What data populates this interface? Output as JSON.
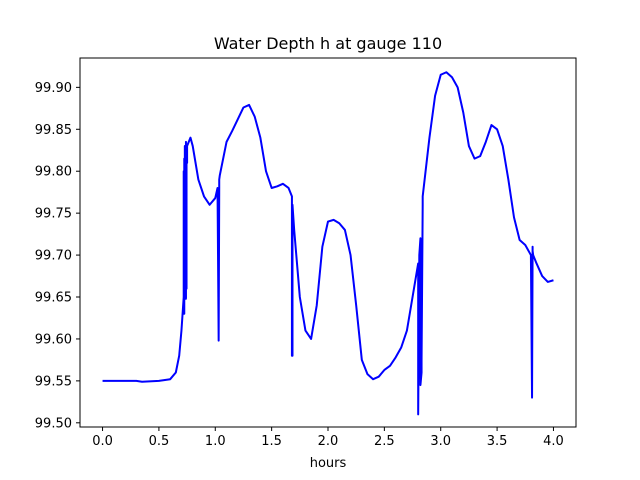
{
  "chart_data": {
    "type": "line",
    "title": "Water Depth h at gauge 110",
    "xlabel": "hours",
    "ylabel": "",
    "xlim": [
      -0.2,
      4.2
    ],
    "ylim": [
      99.495,
      99.935
    ],
    "x_ticks": [
      0.0,
      0.5,
      1.0,
      1.5,
      2.0,
      2.5,
      3.0,
      3.5,
      4.0
    ],
    "x_tick_labels": [
      "0.0",
      "0.5",
      "1.0",
      "1.5",
      "2.0",
      "2.5",
      "3.0",
      "3.5",
      "4.0"
    ],
    "y_ticks": [
      99.5,
      99.55,
      99.6,
      99.65,
      99.7,
      99.75,
      99.8,
      99.85,
      99.9
    ],
    "y_tick_labels": [
      "99.50",
      "99.55",
      "99.60",
      "99.65",
      "99.70",
      "99.75",
      "99.80",
      "99.85",
      "99.90"
    ],
    "grid": false,
    "series": [
      {
        "color": "#0000ff",
        "x": [
          0.0,
          0.3,
          0.35,
          0.5,
          0.6,
          0.65,
          0.68,
          0.7,
          0.72,
          0.72,
          0.725,
          0.725,
          0.73,
          0.73,
          0.74,
          0.74,
          0.745,
          0.745,
          0.75,
          0.75,
          0.78,
          0.8,
          0.85,
          0.9,
          0.95,
          1.0,
          1.02,
          1.03,
          1.03,
          1.035,
          1.035,
          1.04,
          1.1,
          1.15,
          1.2,
          1.25,
          1.3,
          1.35,
          1.4,
          1.45,
          1.5,
          1.55,
          1.6,
          1.65,
          1.68,
          1.68,
          1.685,
          1.685,
          1.69,
          1.7,
          1.75,
          1.8,
          1.85,
          1.9,
          1.95,
          2.0,
          2.05,
          2.1,
          2.15,
          2.2,
          2.25,
          2.3,
          2.35,
          2.4,
          2.45,
          2.5,
          2.55,
          2.6,
          2.65,
          2.7,
          2.75,
          2.8,
          2.8,
          2.81,
          2.82,
          2.82,
          2.83,
          2.83,
          2.84,
          2.84,
          2.9,
          2.95,
          3.0,
          3.05,
          3.1,
          3.15,
          3.2,
          3.25,
          3.3,
          3.35,
          3.4,
          3.45,
          3.5,
          3.55,
          3.6,
          3.65,
          3.7,
          3.75,
          3.8,
          3.81,
          3.81,
          3.815,
          3.815,
          3.82,
          3.85,
          3.9,
          3.95,
          4.0
        ],
        "y": [
          99.55,
          99.55,
          99.549,
          99.55,
          99.552,
          99.56,
          99.58,
          99.61,
          99.65,
          99.8,
          99.63,
          99.815,
          99.65,
          99.83,
          99.648,
          99.835,
          99.66,
          99.825,
          99.81,
          99.83,
          99.84,
          99.83,
          99.79,
          99.77,
          99.76,
          99.768,
          99.78,
          99.6,
          99.598,
          99.78,
          99.79,
          99.795,
          99.835,
          99.848,
          99.862,
          99.876,
          99.879,
          99.865,
          99.84,
          99.8,
          99.78,
          99.782,
          99.785,
          99.78,
          99.77,
          99.58,
          99.58,
          99.76,
          99.75,
          99.73,
          99.65,
          99.61,
          99.6,
          99.64,
          99.71,
          99.74,
          99.742,
          99.738,
          99.73,
          99.7,
          99.64,
          99.575,
          99.558,
          99.552,
          99.555,
          99.563,
          99.568,
          99.578,
          99.59,
          99.61,
          99.65,
          99.69,
          99.51,
          99.7,
          99.72,
          99.545,
          99.56,
          99.575,
          99.76,
          99.77,
          99.84,
          99.89,
          99.915,
          99.918,
          99.912,
          99.9,
          99.87,
          99.83,
          99.815,
          99.818,
          99.835,
          99.855,
          99.85,
          99.83,
          99.79,
          99.745,
          99.718,
          99.712,
          99.7,
          99.53,
          99.53,
          99.71,
          99.705,
          99.7,
          99.69,
          99.675,
          99.668,
          99.67
        ]
      }
    ]
  }
}
